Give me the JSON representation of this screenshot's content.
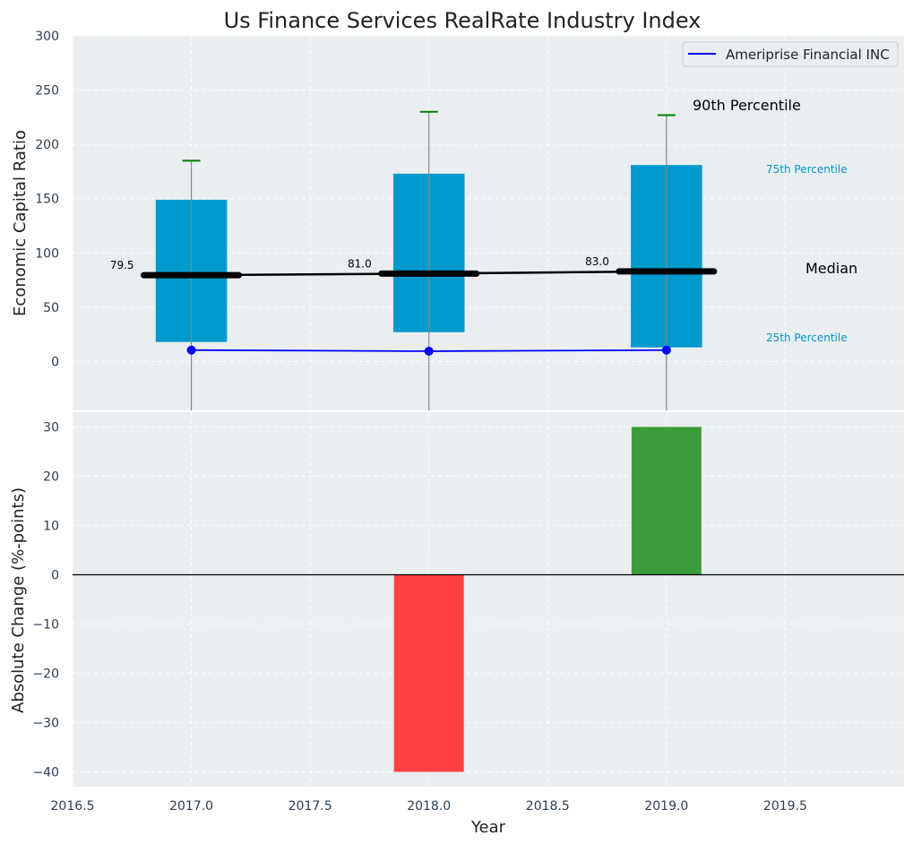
{
  "chart_data": {
    "title": "Us Finance Services RealRate Industry Index",
    "xlabel": "Year",
    "x_ticks": [
      "2016.5",
      "2017.0",
      "2017.5",
      "2018.0",
      "2018.5",
      "2019.0",
      "2019.5"
    ],
    "xlim": [
      2016.5,
      2020.0
    ],
    "panels": [
      {
        "type": "box",
        "ylabel": "Economic Capital Ratio",
        "ylim": [
          -45,
          300
        ],
        "y_ticks": [
          "0",
          "50",
          "100",
          "150",
          "200",
          "250",
          "300"
        ],
        "grid": true,
        "legend": {
          "position": "top-right",
          "entries": [
            "Ameriprise Financial INC"
          ]
        },
        "years": [
          2017,
          2018,
          2019
        ],
        "p25": [
          18,
          27,
          13
        ],
        "p75": [
          149,
          173,
          181
        ],
        "p90": [
          185,
          230,
          227
        ],
        "median": [
          79.5,
          81.0,
          83.0
        ],
        "median_labels": [
          "79.5",
          "81.0",
          "83.0"
        ],
        "company_series": {
          "name": "Ameriprise Financial INC",
          "values": [
            10.5,
            9.5,
            10.5
          ]
        },
        "annotations": {
          "p90": "90th Percentile",
          "p75": "75th Percentile",
          "median": "Median",
          "p25": "25th Percentile"
        },
        "colors": {
          "box": "#0099cc",
          "median": "#000000",
          "company": "#0000ff",
          "p90": "#008000",
          "whisker": "#888888"
        }
      },
      {
        "type": "bar",
        "ylabel": "Absolute Change (%-points)",
        "ylim": [
          -43,
          33
        ],
        "y_ticks": [
          "30",
          "20",
          "10",
          "0",
          "−10",
          "−20",
          "−30",
          "−40"
        ],
        "grid": true,
        "years": [
          2018,
          2019
        ],
        "values": [
          -40,
          30
        ],
        "colors": {
          "negative": "#ff4040",
          "positive": "#3c9c3c"
        }
      }
    ]
  }
}
